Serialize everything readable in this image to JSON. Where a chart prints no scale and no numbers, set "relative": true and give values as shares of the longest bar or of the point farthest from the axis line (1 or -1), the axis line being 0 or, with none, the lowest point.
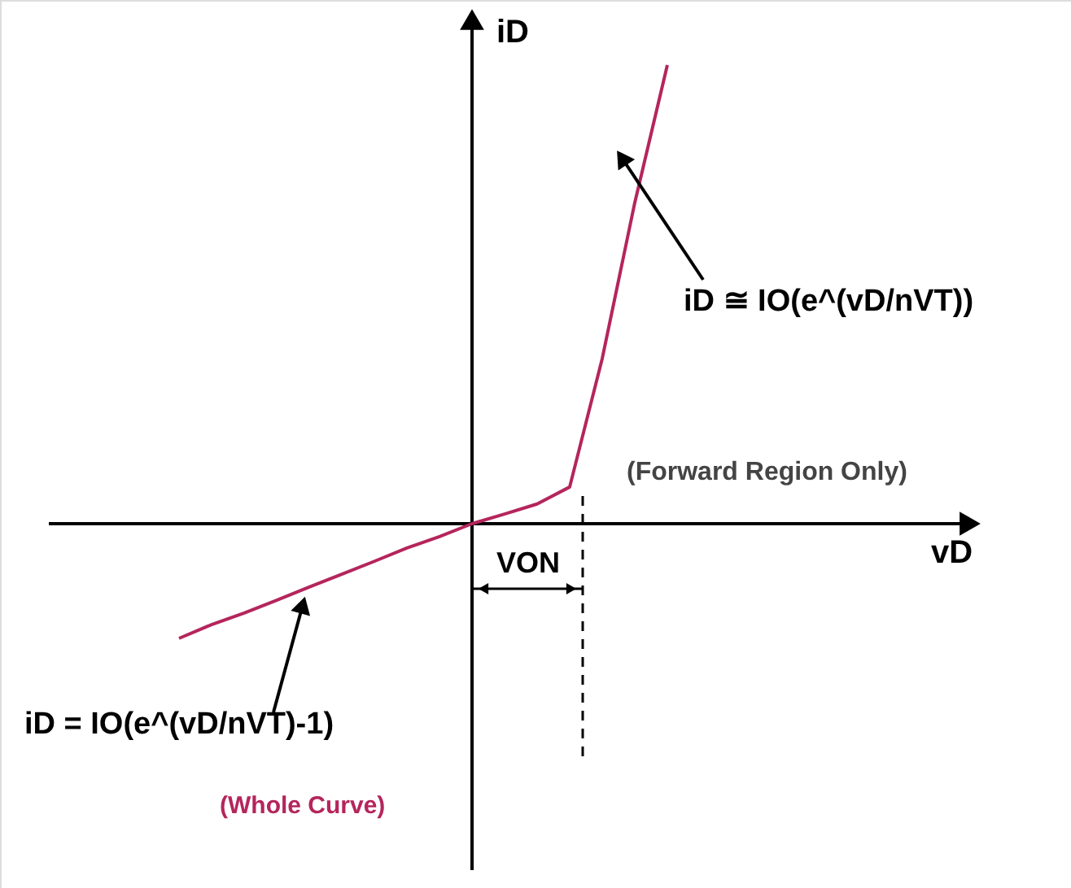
{
  "chart_data": {
    "type": "line",
    "relative": true,
    "marker": "none",
    "line_style": "solid",
    "ylabel": "iD",
    "categories": [
      null,
      null,
      null,
      null,
      null,
      null,
      null,
      null,
      null,
      null,
      null,
      null,
      null,
      null,
      null,
      null
    ],
    "series": [
      {
        "color": "#b5255c",
        "values": [
          -0.25,
          -0.22,
          -0.195,
          -0.167,
          -0.138,
          -0.11,
          -0.082,
          -0.053,
          -0.028,
          0,
          0.021,
          0.043,
          0.08,
          0.36,
          0.7,
          1
        ]
      }
    ],
    "annotations": [
      "iD = IO(e^(vD/nVT)-1)",
      "(Whole Curve)",
      "iD ≅ IO(e^(vD/nVT))",
      "(Forward Region Only)",
      "VON",
      "vD"
    ]
  }
}
